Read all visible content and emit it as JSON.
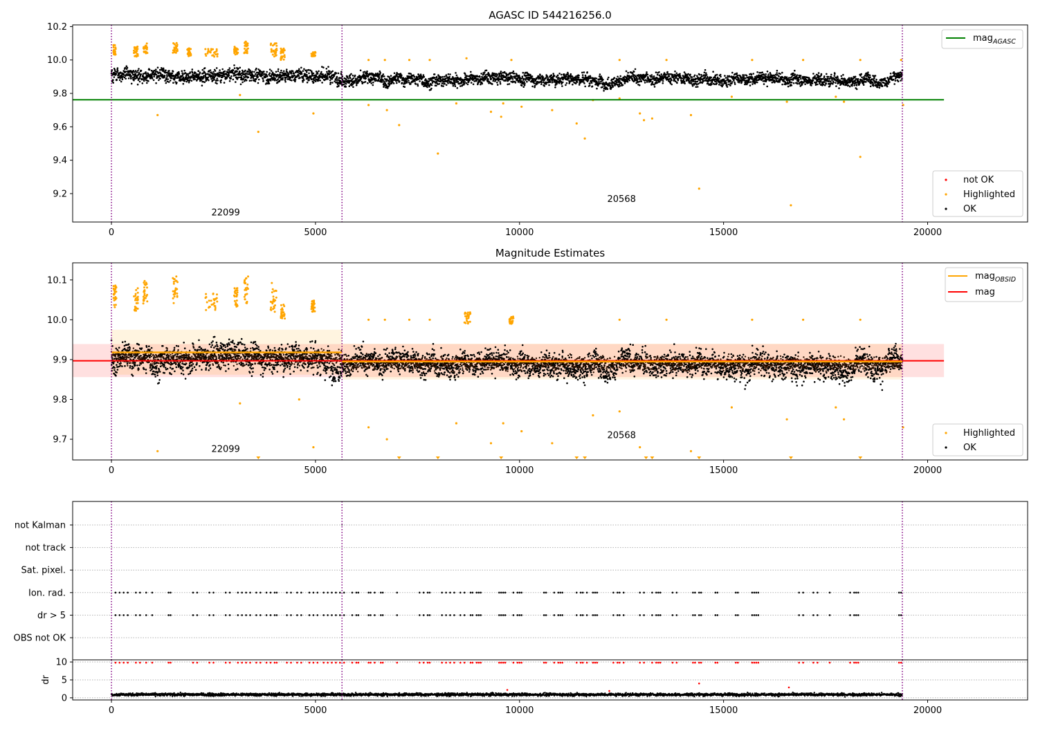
{
  "figure": {
    "background": "#ffffff"
  },
  "chart_data": [
    {
      "type": "scatter",
      "title": "AGASC ID 544216256.0",
      "xlim": [
        -950,
        22450
      ],
      "ylim": [
        9.03,
        10.21
      ],
      "x_ticks": [
        0,
        5000,
        10000,
        15000,
        20000
      ],
      "y_ticks": [
        9.2,
        9.4,
        9.6,
        9.8,
        10.0,
        10.2
      ],
      "y_tick_labels": [
        "9.2",
        "9.4",
        "9.6",
        "9.8",
        "10.0",
        "10.2"
      ],
      "obsid_boundaries": [
        0,
        5650,
        19380
      ],
      "obsid_labels": [
        {
          "text": "22099",
          "x": 2800,
          "y": 9.07
        },
        {
          "text": "20568",
          "x": 12500,
          "y": 9.15
        }
      ],
      "reference_line": {
        "name": "mag",
        "subscript": "AGASC",
        "value": 9.762,
        "x_range": [
          -950,
          20400
        ],
        "color": "#008000"
      },
      "ok_series": {
        "name": "OK",
        "color": "#000000",
        "segments": [
          {
            "x": [
              0,
              5650
            ],
            "mean": 9.91,
            "spread": 0.06
          },
          {
            "x": [
              5650,
              19380
            ],
            "mean": 9.885,
            "spread": 0.055
          }
        ]
      },
      "highlighted_series": {
        "name": "Highlighted",
        "color": "#ffa500",
        "clusters": [
          {
            "x": [
              50,
              120
            ],
            "y": [
              10.03,
              10.09
            ]
          },
          {
            "x": [
              550,
              650
            ],
            "y": [
              10.02,
              10.08
            ]
          },
          {
            "x": [
              780,
              880
            ],
            "y": [
              10.04,
              10.1
            ]
          },
          {
            "x": [
              1500,
              1620
            ],
            "y": [
              10.04,
              10.11
            ]
          },
          {
            "x": [
              1850,
              1950
            ],
            "y": [
              10.02,
              10.07
            ]
          },
          {
            "x": [
              2300,
              2600
            ],
            "y": [
              10.02,
              10.07
            ]
          },
          {
            "x": [
              3000,
              3100
            ],
            "y": [
              10.03,
              10.08
            ]
          },
          {
            "x": [
              3250,
              3350
            ],
            "y": [
              10.04,
              10.11
            ]
          },
          {
            "x": [
              3900,
              4050
            ],
            "y": [
              10.02,
              10.1
            ]
          },
          {
            "x": [
              4150,
              4250
            ],
            "y": [
              10.0,
              10.07
            ]
          },
          {
            "x": [
              4900,
              5000
            ],
            "y": [
              10.02,
              10.05
            ]
          }
        ],
        "points": [
          [
            1130,
            9.67
          ],
          [
            3600,
            9.57
          ],
          [
            4950,
            9.68
          ],
          [
            3150,
            9.79
          ],
          [
            6300,
            9.73
          ],
          [
            6750,
            9.7
          ],
          [
            7050,
            9.61
          ],
          [
            8000,
            9.44
          ],
          [
            8450,
            9.74
          ],
          [
            9300,
            9.69
          ],
          [
            9550,
            9.66
          ],
          [
            9600,
            9.74
          ],
          [
            10050,
            9.72
          ],
          [
            10800,
            9.7
          ],
          [
            11400,
            9.62
          ],
          [
            11600,
            9.53
          ],
          [
            11800,
            9.76
          ],
          [
            12450,
            9.77
          ],
          [
            12950,
            9.68
          ],
          [
            13050,
            9.64
          ],
          [
            13250,
            9.65
          ],
          [
            14200,
            9.67
          ],
          [
            14400,
            9.23
          ],
          [
            15200,
            9.78
          ],
          [
            16550,
            9.75
          ],
          [
            16650,
            9.13
          ],
          [
            17750,
            9.78
          ],
          [
            17950,
            9.75
          ],
          [
            18350,
            9.42
          ],
          [
            19400,
            9.73
          ],
          [
            6300,
            10.0
          ],
          [
            6700,
            10.0
          ],
          [
            7300,
            10.0
          ],
          [
            7800,
            10.0
          ],
          [
            8700,
            10.01
          ],
          [
            9800,
            10.0
          ],
          [
            12450,
            10.0
          ],
          [
            13600,
            10.0
          ],
          [
            15700,
            10.0
          ],
          [
            16950,
            10.0
          ],
          [
            18350,
            10.0
          ],
          [
            19350,
            10.0
          ]
        ]
      },
      "legends": [
        {
          "position": "top-right",
          "entries": [
            {
              "label": "mag",
              "subscript": "AGASC",
              "kind": "line",
              "color": "#008000"
            }
          ]
        },
        {
          "position": "bottom-right",
          "entries": [
            {
              "label": "not OK",
              "kind": "marker",
              "color": "#ff0000"
            },
            {
              "label": "Highlighted",
              "kind": "marker",
              "color": "#ffa500"
            },
            {
              "label": "OK",
              "kind": "marker",
              "color": "#000000"
            }
          ]
        }
      ]
    },
    {
      "type": "scatter",
      "title": "Magnitude Estimates",
      "xlim": [
        -950,
        22450
      ],
      "ylim": [
        9.648,
        10.143
      ],
      "x_ticks": [
        0,
        5000,
        10000,
        15000,
        20000
      ],
      "y_ticks": [
        9.7,
        9.8,
        9.9,
        10.0,
        10.1
      ],
      "y_tick_labels": [
        "9.7",
        "9.8",
        "9.9",
        "10.0",
        "10.1"
      ],
      "obsid_boundaries": [
        0,
        5650,
        19380
      ],
      "obsid_labels": [
        {
          "text": "22099",
          "x": 2800,
          "y": 9.668
        },
        {
          "text": "20568",
          "x": 12500,
          "y": 9.703
        }
      ],
      "mag_line": {
        "name": "mag",
        "value": 9.897,
        "x_range": [
          -950,
          20400
        ],
        "band": [
          9.856,
          9.939
        ],
        "color": "#ff0000"
      },
      "mag_obsid": {
        "name": "mag",
        "subscript": "OBSID",
        "color": "#ffa500",
        "segments": [
          {
            "x": [
              0,
              5650
            ],
            "value": 9.918,
            "band": [
              9.862,
              9.975
            ]
          },
          {
            "x": [
              5650,
              19380
            ],
            "value": 9.895,
            "band": [
              9.85,
              9.94
            ]
          }
        ]
      },
      "ok_series": {
        "name": "OK",
        "color": "#000000",
        "segments": [
          {
            "x": [
              0,
              5650
            ],
            "mean": 9.905,
            "spread": 0.055
          },
          {
            "x": [
              5650,
              19380
            ],
            "mean": 9.89,
            "spread": 0.048
          }
        ]
      },
      "highlighted_series": {
        "name": "Highlighted",
        "color": "#ffa500",
        "clusters": [
          {
            "x": [
              50,
              120
            ],
            "y": [
              10.03,
              10.09
            ]
          },
          {
            "x": [
              550,
              650
            ],
            "y": [
              10.02,
              10.08
            ]
          },
          {
            "x": [
              780,
              880
            ],
            "y": [
              10.04,
              10.1
            ]
          },
          {
            "x": [
              1500,
              1620
            ],
            "y": [
              10.04,
              10.11
            ]
          },
          {
            "x": [
              2300,
              2600
            ],
            "y": [
              10.02,
              10.07
            ]
          },
          {
            "x": [
              3000,
              3100
            ],
            "y": [
              10.03,
              10.08
            ]
          },
          {
            "x": [
              3250,
              3350
            ],
            "y": [
              10.04,
              10.11
            ]
          },
          {
            "x": [
              3900,
              4050
            ],
            "y": [
              10.02,
              10.1
            ]
          },
          {
            "x": [
              4150,
              4250
            ],
            "y": [
              10.0,
              10.04
            ]
          },
          {
            "x": [
              4900,
              5000
            ],
            "y": [
              10.02,
              10.05
            ]
          },
          {
            "x": [
              8650,
              8800
            ],
            "y": [
              9.99,
              10.02
            ]
          },
          {
            "x": [
              9750,
              9850
            ],
            "y": [
              9.99,
              10.01
            ]
          }
        ],
        "points": [
          [
            1130,
            9.67
          ],
          [
            3150,
            9.79
          ],
          [
            4600,
            9.8
          ],
          [
            4950,
            9.68
          ],
          [
            6300,
            9.73
          ],
          [
            6750,
            9.7
          ],
          [
            8450,
            9.74
          ],
          [
            9300,
            9.69
          ],
          [
            9600,
            9.74
          ],
          [
            10050,
            9.72
          ],
          [
            10800,
            9.69
          ],
          [
            11800,
            9.76
          ],
          [
            12450,
            9.77
          ],
          [
            12950,
            9.68
          ],
          [
            14200,
            9.67
          ],
          [
            15200,
            9.78
          ],
          [
            16550,
            9.75
          ],
          [
            17750,
            9.78
          ],
          [
            17950,
            9.75
          ],
          [
            19400,
            9.73
          ],
          [
            6300,
            10.0
          ],
          [
            6700,
            10.0
          ],
          [
            7300,
            10.0
          ],
          [
            7800,
            10.0
          ],
          [
            12450,
            10.0
          ],
          [
            13600,
            10.0
          ],
          [
            15700,
            10.0
          ],
          [
            16950,
            10.0
          ],
          [
            18350,
            10.0
          ]
        ],
        "below_axis_x": [
          3600,
          7050,
          8000,
          9550,
          11400,
          11600,
          13100,
          13250,
          14400,
          16650,
          18350
        ]
      },
      "legends": [
        {
          "position": "top-right",
          "entries": [
            {
              "label": "mag",
              "subscript": "OBSID",
              "kind": "line",
              "color": "#ffa500"
            },
            {
              "label": "mag",
              "kind": "line",
              "color": "#ff0000"
            }
          ]
        },
        {
          "position": "bottom-right",
          "entries": [
            {
              "label": "Highlighted",
              "kind": "marker",
              "color": "#ffa500"
            },
            {
              "label": "OK",
              "kind": "marker",
              "color": "#000000"
            }
          ]
        }
      ]
    },
    {
      "type": "scatter",
      "title": "",
      "xlim": [
        -950,
        22450
      ],
      "categories": [
        "not Kalman",
        "not track",
        "Sat. pixel.",
        "Ion. rad.",
        "dr > 5",
        "OBS not OK"
      ],
      "obsid_boundaries": [
        0,
        5650,
        19380
      ],
      "flag_times": [
        100,
        200,
        300,
        400,
        600,
        700,
        850,
        1000,
        1400,
        1450,
        2000,
        2100,
        2400,
        2500,
        2800,
        2900,
        3100,
        3200,
        3300,
        3400,
        3550,
        3650,
        3800,
        3900,
        4000,
        4050,
        4300,
        4400,
        4550,
        4650,
        4850,
        4950,
        5050,
        5200,
        5300,
        5400,
        5500,
        5600,
        5700,
        5900,
        6000,
        6050,
        6300,
        6350,
        6450,
        6600,
        6650,
        7000,
        7550,
        7650,
        7750,
        7800,
        8100,
        8200,
        8300,
        8400,
        8550,
        8650,
        8800,
        8850,
        8950,
        9000,
        9050,
        9500,
        9550,
        9600,
        9650,
        9850,
        9950,
        10000,
        10050,
        10600,
        10650,
        10850,
        10950,
        11000,
        11050,
        11400,
        11500,
        11550,
        11650,
        11800,
        11850,
        11900,
        12300,
        12400,
        12450,
        12550,
        12950,
        13050,
        13250,
        13350,
        13400,
        13450,
        13750,
        13850,
        14250,
        14300,
        14400,
        14450,
        14800,
        14850,
        15300,
        15350,
        15700,
        15750,
        15800,
        15850,
        16850,
        16950,
        17200,
        17300,
        17600,
        18100,
        18200,
        18250,
        18300,
        19300,
        19350
      ],
      "flag_rows": [
        "Ion. rad.",
        "dr > 5"
      ],
      "flag_color": "#000000",
      "grid": true
    },
    {
      "type": "scatter",
      "title": "",
      "ylabel": "dr",
      "xlim": [
        -950,
        22450
      ],
      "ylim": [
        -0.6,
        10.6
      ],
      "x_ticks": [
        0,
        5000,
        10000,
        15000,
        20000
      ],
      "y_ticks": [
        0,
        5,
        10
      ],
      "y_tick_labels": [
        "0",
        "5",
        "10"
      ],
      "obsid_boundaries": [
        0,
        5650,
        19380
      ],
      "ok_series": {
        "name": "OK",
        "color": "#000000",
        "mean": 0.9,
        "spread": 0.55
      },
      "clipped_points": {
        "name": "not OK",
        "color": "#ff0000",
        "y": 9.8
      },
      "outliers": [
        [
          14400,
          4.0
        ],
        [
          16600,
          2.9
        ],
        [
          9700,
          2.2
        ],
        [
          12200,
          1.9
        ]
      ],
      "grid": true
    }
  ]
}
